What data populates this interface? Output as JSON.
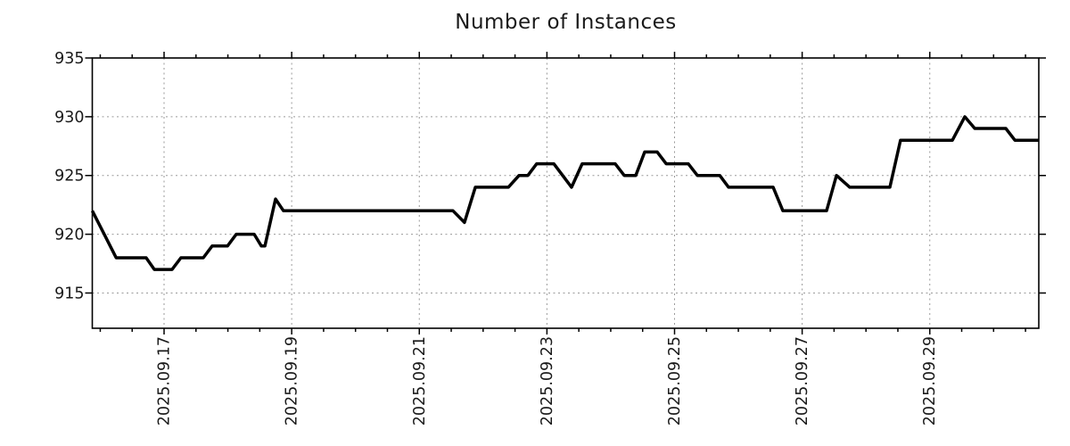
{
  "chart_data": {
    "type": "line",
    "title": "Number of Instances",
    "legend": false,
    "grid": true,
    "colors": {
      "line": "#000000",
      "grid": "#9a9a9a",
      "axis": "#000000",
      "text": "#1a1a1a",
      "background": "#ffffff"
    },
    "y_axis": {
      "min": 912,
      "max": 935,
      "ticks": [
        915,
        920,
        925,
        930,
        935
      ]
    },
    "x_axis": {
      "start": "2025-09-15T21:00",
      "end": "2025-09-30T17:00",
      "minor_tick_interval_hours": 12,
      "minor_tick_origin": "2025-09-16T00:00",
      "ticks": [
        {
          "label": "2025.09.17",
          "t": "2025-09-17T00:00"
        },
        {
          "label": "2025.09.19",
          "t": "2025-09-19T00:00"
        },
        {
          "label": "2025.09.21",
          "t": "2025-09-21T00:00"
        },
        {
          "label": "2025.09.23",
          "t": "2025-09-23T00:00"
        },
        {
          "label": "2025.09.25",
          "t": "2025-09-25T00:00"
        },
        {
          "label": "2025.09.27",
          "t": "2025-09-27T00:00"
        },
        {
          "label": "2025.09.29",
          "t": "2025-09-29T00:00"
        }
      ]
    },
    "series": [
      {
        "name": "Number of Instances",
        "color": "#000000",
        "points": [
          [
            "2025-09-15T21:00",
            922
          ],
          [
            "2025-09-16T06:00",
            918
          ],
          [
            "2025-09-16T17:15",
            918
          ],
          [
            "2025-09-16T20:20",
            917
          ],
          [
            "2025-09-17T03:00",
            917
          ],
          [
            "2025-09-17T06:20",
            918
          ],
          [
            "2025-09-17T14:45",
            918
          ],
          [
            "2025-09-17T18:05",
            919
          ],
          [
            "2025-09-17T23:50",
            919
          ],
          [
            "2025-09-18T03:10",
            920
          ],
          [
            "2025-09-18T09:55",
            920
          ],
          [
            "2025-09-18T12:35",
            919
          ],
          [
            "2025-09-18T13:55",
            919
          ],
          [
            "2025-09-18T17:55",
            923
          ],
          [
            "2025-09-18T20:55",
            922
          ],
          [
            "2025-09-21T12:40",
            922
          ],
          [
            "2025-09-21T17:00",
            921
          ],
          [
            "2025-09-21T21:05",
            924
          ],
          [
            "2025-09-22T09:30",
            924
          ],
          [
            "2025-09-22T13:30",
            925
          ],
          [
            "2025-09-22T16:50",
            925
          ],
          [
            "2025-09-22T20:10",
            926
          ],
          [
            "2025-09-23T02:35",
            926
          ],
          [
            "2025-09-23T09:15",
            924
          ],
          [
            "2025-09-23T13:15",
            926
          ],
          [
            "2025-09-24T01:40",
            926
          ],
          [
            "2025-09-24T05:05",
            925
          ],
          [
            "2025-09-24T09:25",
            925
          ],
          [
            "2025-09-24T12:45",
            927
          ],
          [
            "2025-09-24T17:30",
            927
          ],
          [
            "2025-09-24T20:50",
            926
          ],
          [
            "2025-09-25T05:10",
            926
          ],
          [
            "2025-09-25T08:35",
            925
          ],
          [
            "2025-09-25T17:00",
            925
          ],
          [
            "2025-09-25T20:20",
            924
          ],
          [
            "2025-09-26T13:05",
            924
          ],
          [
            "2025-09-26T16:45",
            922
          ],
          [
            "2025-09-27T09:10",
            922
          ],
          [
            "2025-09-27T12:55",
            925
          ],
          [
            "2025-09-27T17:55",
            924
          ],
          [
            "2025-09-28T09:00",
            924
          ],
          [
            "2025-09-28T13:00",
            928
          ],
          [
            "2025-09-29T08:30",
            928
          ],
          [
            "2025-09-29T13:10",
            930
          ],
          [
            "2025-09-29T16:55",
            929
          ],
          [
            "2025-09-30T04:35",
            929
          ],
          [
            "2025-09-30T08:00",
            928
          ],
          [
            "2025-09-30T17:00",
            928
          ]
        ]
      }
    ]
  }
}
